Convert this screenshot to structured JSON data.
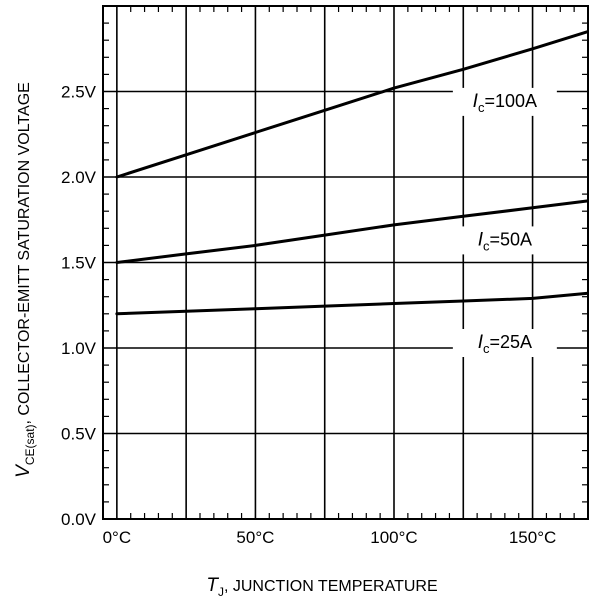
{
  "chart_data": {
    "type": "line",
    "xlabel": {
      "symbol": "T",
      "subscript": "J",
      "text": ", JUNCTION TEMPERATURE"
    },
    "ylabel": {
      "symbol": "V",
      "subscript": "CE(sat)",
      "text": ", COLLECTOR-EMITT SATURATION VOLTAGE"
    },
    "xlim": [
      -5,
      170
    ],
    "ylim": [
      0,
      3.0
    ],
    "grid": true,
    "x_major_ticks": [
      0,
      50,
      100,
      150
    ],
    "x_tick_labels": [
      "0°C",
      "50°C",
      "100°C",
      "150°C"
    ],
    "x_grid_lines": [
      0,
      25,
      50,
      75,
      100,
      125,
      150
    ],
    "y_major_ticks": [
      0,
      0.5,
      1.0,
      1.5,
      2.0,
      2.5
    ],
    "y_tick_labels": [
      "0.0V",
      "0.5V",
      "1.0V",
      "1.5V",
      "2.0V",
      "2.5V"
    ],
    "series": [
      {
        "name": "Ic=100A",
        "label": {
          "symbol": "I",
          "subscript": "c",
          "text": "=100A"
        },
        "x": [
          0,
          25,
          50,
          75,
          100,
          125,
          150,
          170
        ],
        "y": [
          2.0,
          2.13,
          2.26,
          2.39,
          2.52,
          2.63,
          2.75,
          2.85
        ]
      },
      {
        "name": "Ic=50A",
        "label": {
          "symbol": "I",
          "subscript": "c",
          "text": "=50A"
        },
        "x": [
          0,
          25,
          50,
          75,
          100,
          125,
          150,
          170
        ],
        "y": [
          1.5,
          1.55,
          1.6,
          1.66,
          1.72,
          1.77,
          1.82,
          1.86
        ]
      },
      {
        "name": "Ic=25A",
        "label": {
          "symbol": "I",
          "subscript": "c",
          "text": "=25A"
        },
        "x": [
          0,
          25,
          50,
          75,
          100,
          125,
          150,
          170
        ],
        "y": [
          1.2,
          1.215,
          1.23,
          1.245,
          1.26,
          1.275,
          1.29,
          1.32
        ]
      }
    ]
  }
}
